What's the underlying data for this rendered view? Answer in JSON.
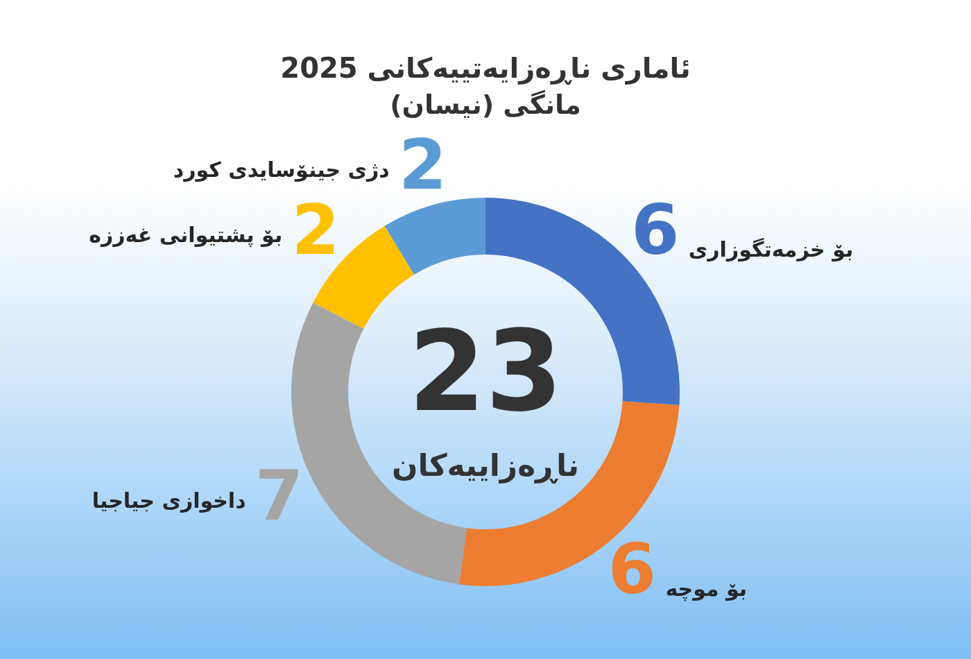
{
  "chart_data": {
    "type": "donut",
    "title": "ئاماری ناڕەزایەتییەکانی 2025",
    "subtitle": "مانگی (نیسان)",
    "categories": [
      "بۆ خزمەتگوزاری",
      "بۆ موچە",
      "داخوازی جیاجیا",
      "بۆ پشتیوانی غەززە",
      "دژی جینۆسایدی کورد"
    ],
    "values": [
      6,
      6,
      7,
      2,
      2
    ],
    "colors": [
      "#4472c4",
      "#ed7d31",
      "#a5a5a5",
      "#ffc000",
      "#5b9bd5"
    ],
    "data_labels": true,
    "legend": false,
    "annotations": [
      "23",
      "ناڕەزاییەکان"
    ]
  }
}
